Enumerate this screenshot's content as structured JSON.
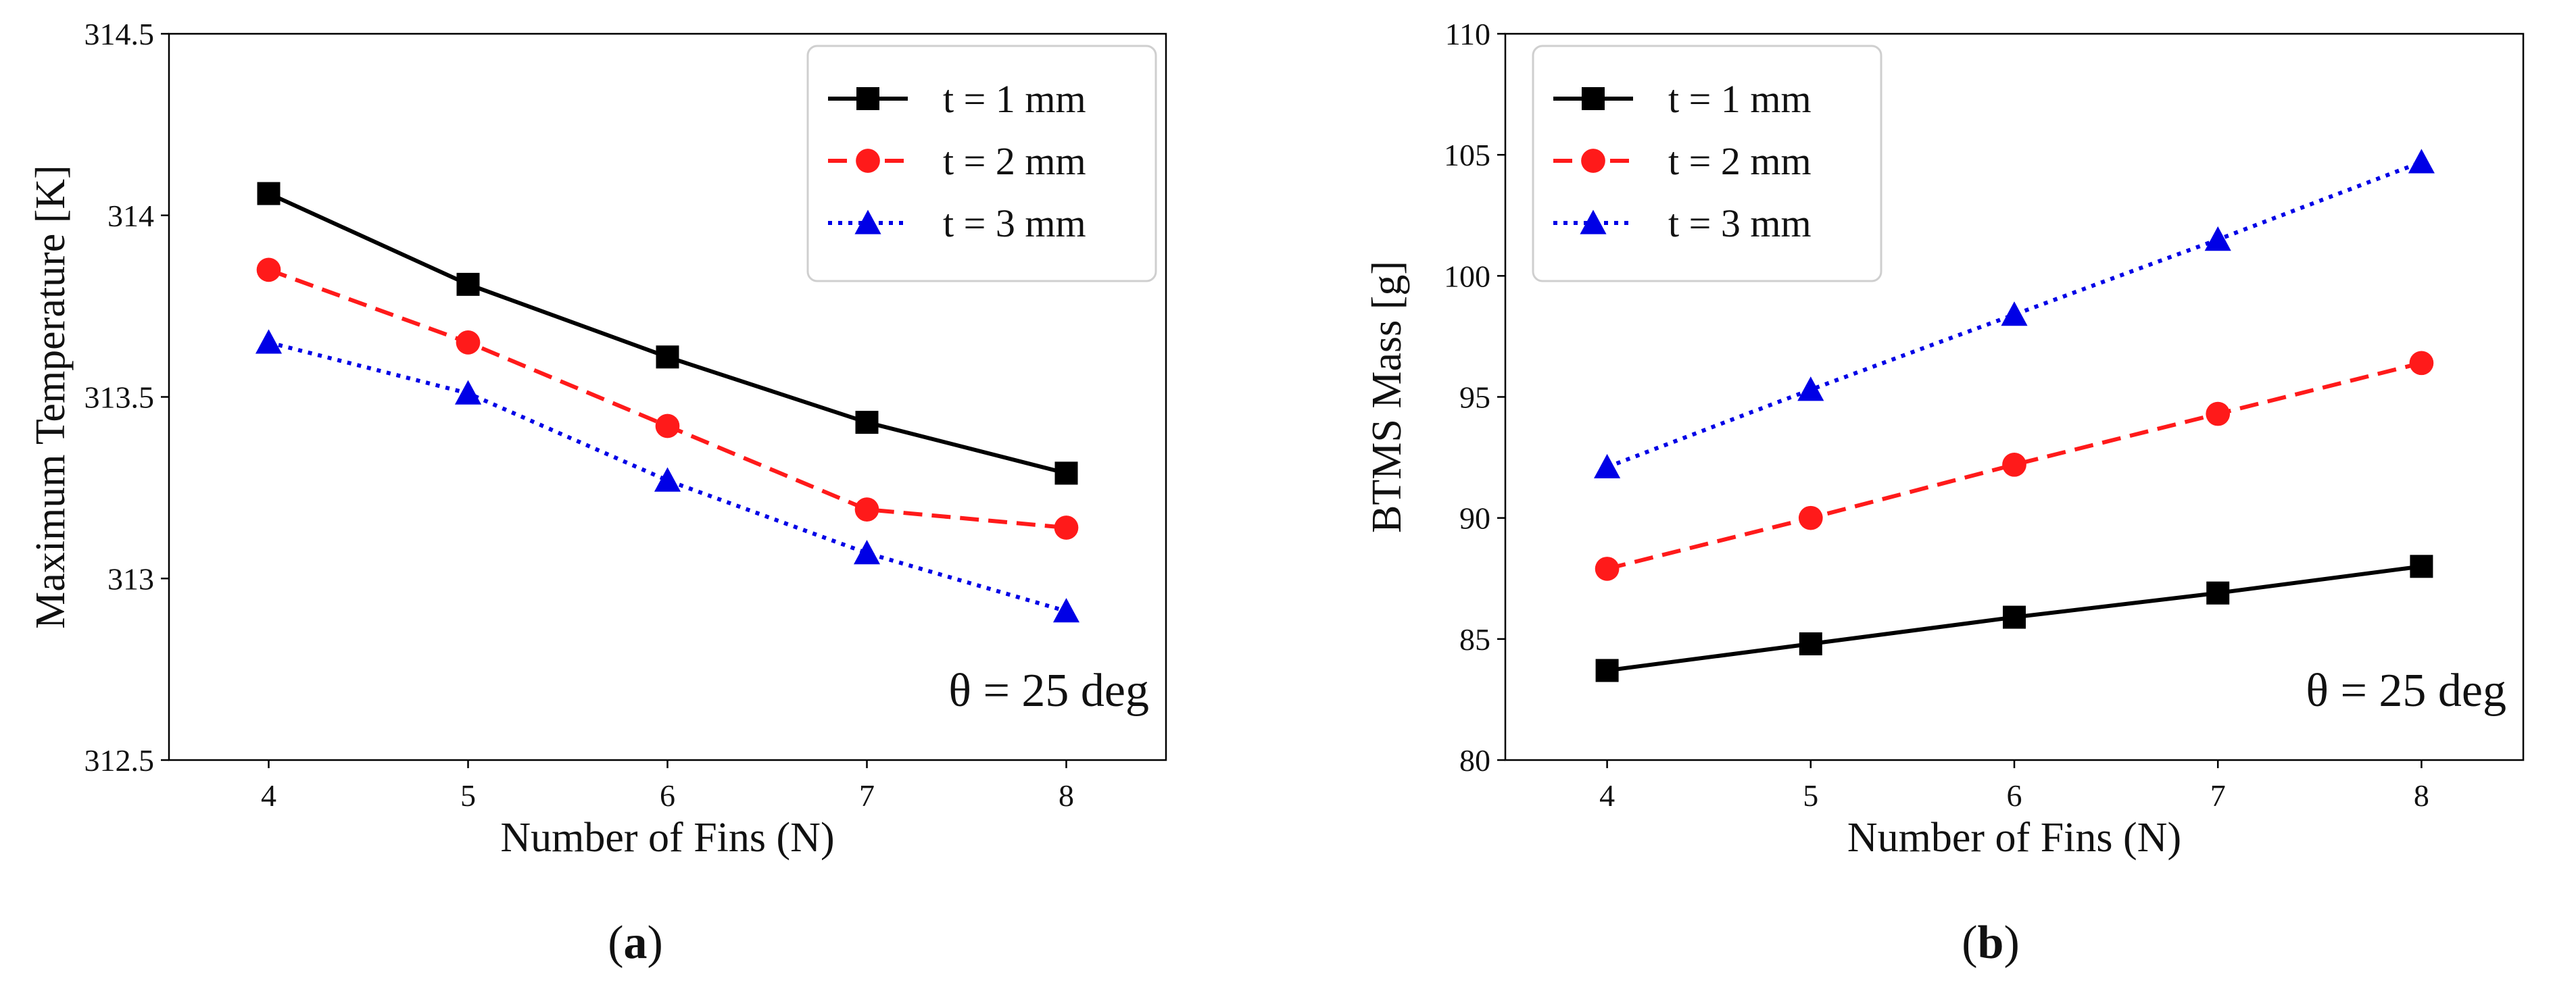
{
  "chart_data": [
    {
      "type": "line",
      "panel_label": "(a)",
      "panel_letter": "a",
      "xlabel": "Number of Fins (N)",
      "ylabel": "Maximum Temperature [K]",
      "x": [
        4,
        5,
        6,
        7,
        8
      ],
      "xlim": [
        3.5,
        8.5
      ],
      "ylim": [
        312.5,
        314.5
      ],
      "y_ticks": [
        312.5,
        313,
        313.5,
        314,
        314.5
      ],
      "y_tick_labels": [
        "312.5",
        "313",
        "313.5",
        "314",
        "314.5"
      ],
      "x_tick_labels": [
        "4",
        "5",
        "6",
        "7",
        "8"
      ],
      "annotation": "θ = 25 deg",
      "grid": false,
      "legend_placement": "top-right",
      "series": [
        {
          "name": "t = 1 mm",
          "values": [
            314.06,
            313.81,
            313.61,
            313.43,
            313.29
          ],
          "color": "#000000",
          "dash": "solid",
          "marker": "square"
        },
        {
          "name": "t = 2 mm",
          "values": [
            313.85,
            313.65,
            313.42,
            313.19,
            313.14
          ],
          "color": "#ff1a1a",
          "dash": "dashed",
          "marker": "circle"
        },
        {
          "name": "t = 3 mm",
          "values": [
            313.65,
            313.51,
            313.27,
            313.07,
            312.91
          ],
          "color": "#0000e6",
          "dash": "dotted",
          "marker": "triangle"
        }
      ]
    },
    {
      "type": "line",
      "panel_label": "(b)",
      "panel_letter": "b",
      "xlabel": "Number of Fins (N)",
      "ylabel": "BTMS Mass [g]",
      "x": [
        4,
        5,
        6,
        7,
        8
      ],
      "xlim": [
        3.5,
        8.5
      ],
      "ylim": [
        80,
        110
      ],
      "y_ticks": [
        80,
        85,
        90,
        95,
        100,
        105,
        110
      ],
      "y_tick_labels": [
        "80",
        "85",
        "90",
        "95",
        "100",
        "105",
        "110"
      ],
      "x_tick_labels": [
        "4",
        "5",
        "6",
        "7",
        "8"
      ],
      "annotation": "θ = 25 deg",
      "grid": false,
      "legend_placement": "top-left",
      "series": [
        {
          "name": "t = 1 mm",
          "values": [
            83.7,
            84.8,
            85.9,
            86.9,
            88.0
          ],
          "color": "#000000",
          "dash": "solid",
          "marker": "square"
        },
        {
          "name": "t = 2 mm",
          "values": [
            87.9,
            90.0,
            92.2,
            94.3,
            96.4
          ],
          "color": "#ff1a1a",
          "dash": "dashed",
          "marker": "circle"
        },
        {
          "name": "t = 3 mm",
          "values": [
            92.1,
            95.3,
            98.4,
            101.5,
            104.7
          ],
          "color": "#0000e6",
          "dash": "dotted",
          "marker": "triangle"
        }
      ]
    }
  ]
}
